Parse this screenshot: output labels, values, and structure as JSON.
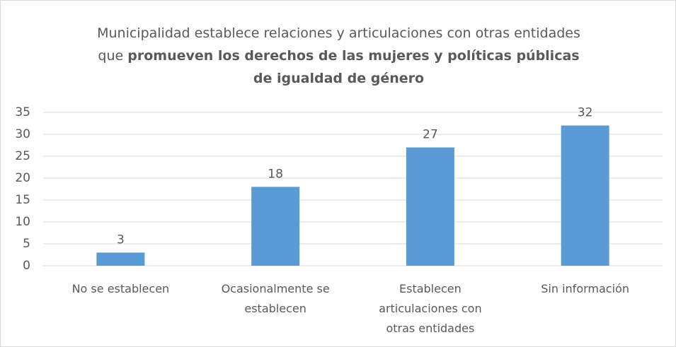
{
  "chart_data": {
    "type": "bar",
    "title": [
      "Municipalidad establece relaciones y articulaciones con otras entidades que",
      "promueven los derechos de las mujeres y políticas públicas de igualdad de género"
    ],
    "categories": [
      "No se establecen",
      "Ocasionalmente se establecen",
      "Establecen articulaciones con otras entidades",
      "Sin información"
    ],
    "values": [
      3,
      18,
      27,
      32
    ],
    "color": "#5b9bd5",
    "ylim": [
      0,
      35
    ],
    "yticks": [
      0,
      5,
      10,
      15,
      20,
      25,
      30,
      35
    ],
    "grid": true
  }
}
